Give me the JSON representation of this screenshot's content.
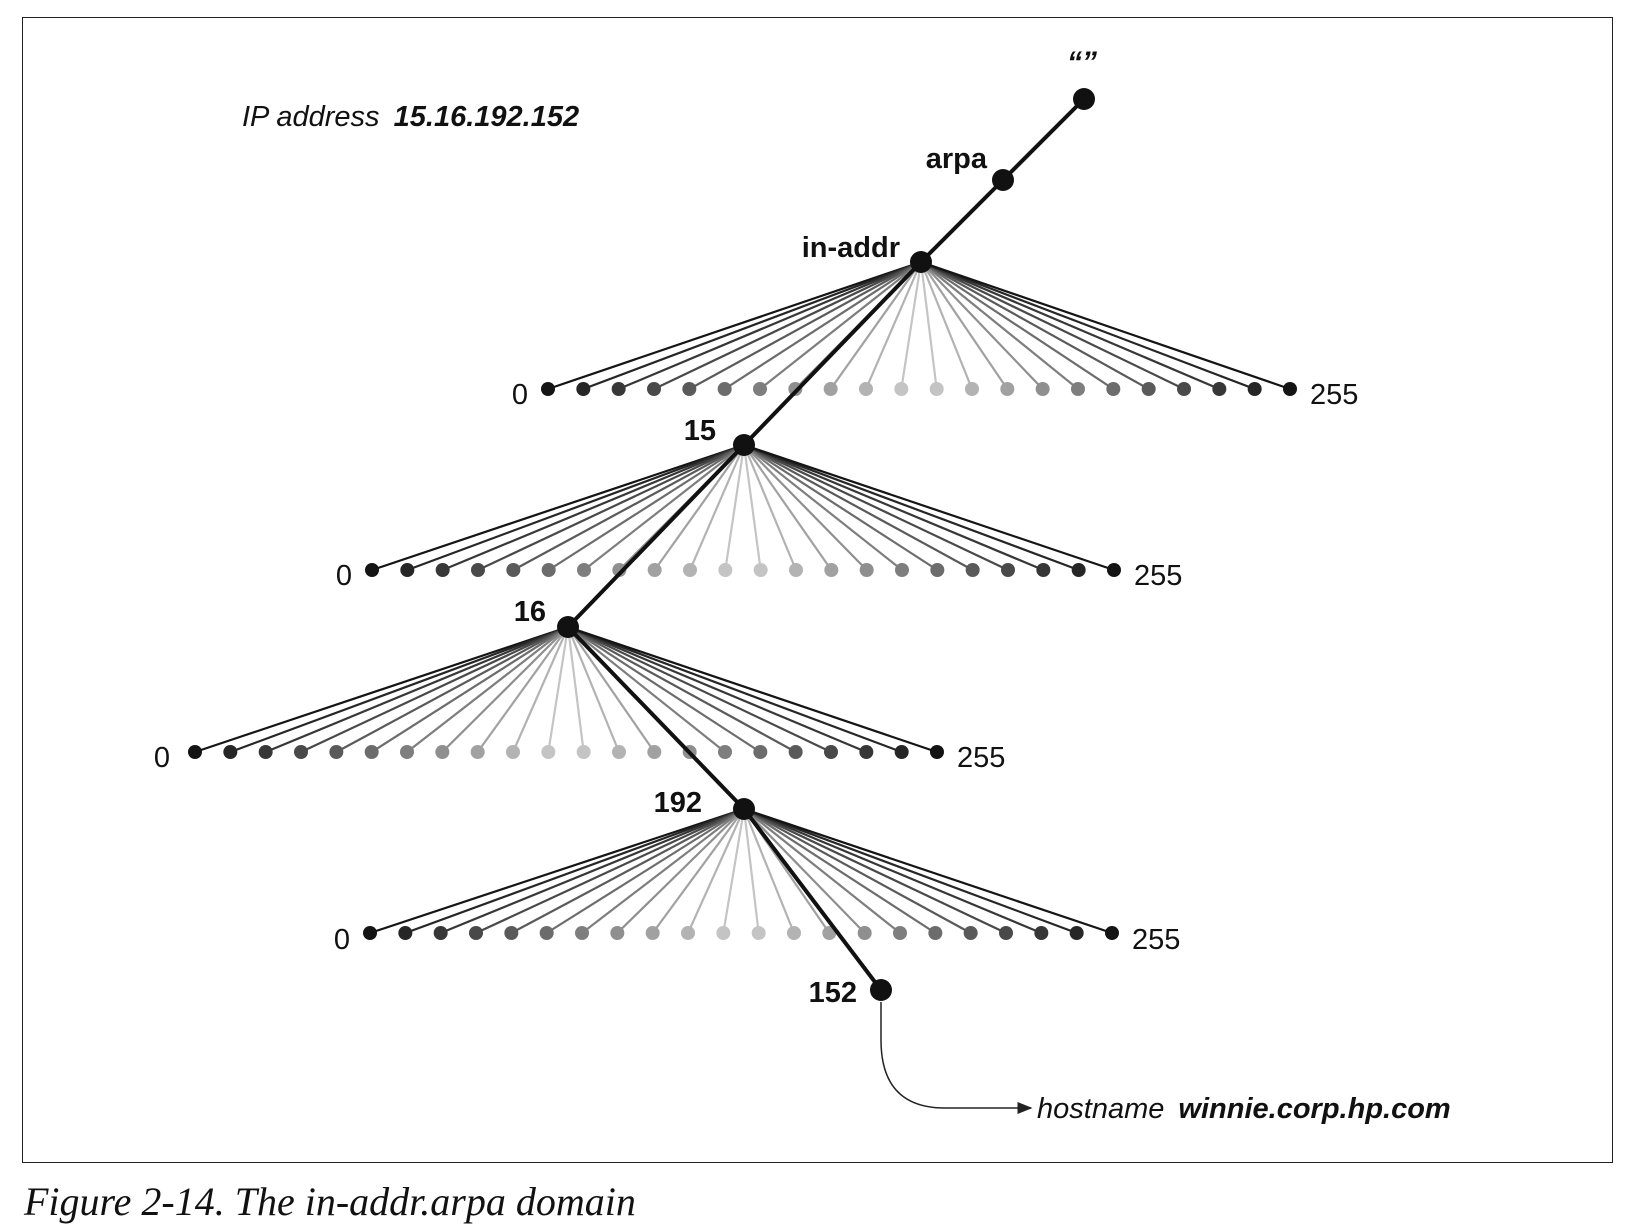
{
  "ip_address": {
    "prefix": "IP address",
    "value": "15.16.192.152"
  },
  "nodes": {
    "root": "“”",
    "arpa": "arpa",
    "in_addr": "in-addr",
    "octet1": "15",
    "octet2": "16",
    "octet3": "192",
    "octet4": "152"
  },
  "ranges": [
    {
      "min": "0",
      "max": "255"
    },
    {
      "min": "0",
      "max": "255"
    },
    {
      "min": "0",
      "max": "255"
    },
    {
      "min": "0",
      "max": "255"
    }
  ],
  "hostname": {
    "prefix": "hostname",
    "value": "winnie.corp.hp.com"
  },
  "caption": "Figure 2-14. The in-addr.arpa domain"
}
